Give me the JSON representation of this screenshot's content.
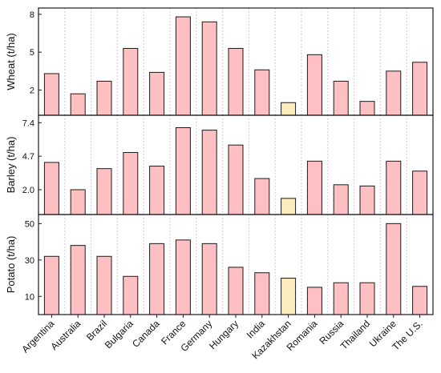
{
  "chart_data": [
    {
      "type": "bar",
      "ylabel": "Wheat (t/ha)",
      "yticks": [
        2,
        5,
        8
      ],
      "ylim": [
        0,
        8.5
      ],
      "categories": [
        "Argentina",
        "Australia",
        "Brazil",
        "Bulgaria",
        "Canada",
        "France",
        "Germany",
        "Hungary",
        "India",
        "Kazakhstan",
        "Romania",
        "Russia",
        "Thailand",
        "Ukraine",
        "The U.S."
      ],
      "values": [
        3.3,
        1.7,
        2.7,
        5.3,
        3.4,
        7.8,
        7.4,
        5.3,
        3.6,
        1.0,
        4.8,
        2.7,
        1.1,
        3.5,
        4.2
      ],
      "highlight_category": "Kazakhstan",
      "grid": "vertical-dotted"
    },
    {
      "type": "bar",
      "ylabel": "Barley (t/ha)",
      "yticks": [
        2.0,
        4.7,
        7.4
      ],
      "ylim": [
        0,
        8.0
      ],
      "categories": [
        "Argentina",
        "Australia",
        "Brazil",
        "Bulgaria",
        "Canada",
        "France",
        "Germany",
        "Hungary",
        "India",
        "Kazakhstan",
        "Romania",
        "Russia",
        "Thailand",
        "Ukraine",
        "The U.S."
      ],
      "values": [
        4.2,
        2.0,
        3.7,
        5.0,
        3.9,
        7.0,
        6.8,
        5.6,
        2.9,
        1.3,
        4.3,
        2.4,
        2.3,
        4.3,
        3.5
      ],
      "highlight_category": "Kazakhstan",
      "grid": "vertical-dotted"
    },
    {
      "type": "bar",
      "ylabel": "Potato (t/ha)",
      "yticks": [
        10,
        30,
        50
      ],
      "ylim": [
        0,
        55
      ],
      "categories": [
        "Argentina",
        "Australia",
        "Brazil",
        "Bulgaria",
        "Canada",
        "France",
        "Germany",
        "Hungary",
        "India",
        "Kazakhstan",
        "Romania",
        "Russia",
        "Thailand",
        "Ukraine",
        "The U.S."
      ],
      "values": [
        32,
        38,
        32,
        21,
        39,
        41,
        39,
        26,
        23,
        20,
        15,
        17.5,
        17.5,
        50,
        15.5
      ],
      "highlight_category": "Kazakhstan",
      "grid": "vertical-dotted"
    }
  ],
  "colors": {
    "bar_fill": "#ffc0c4",
    "highlight_fill": "#fdecbb",
    "bar_stroke": "#1a1a1a",
    "grid": "#bfbfbf"
  }
}
